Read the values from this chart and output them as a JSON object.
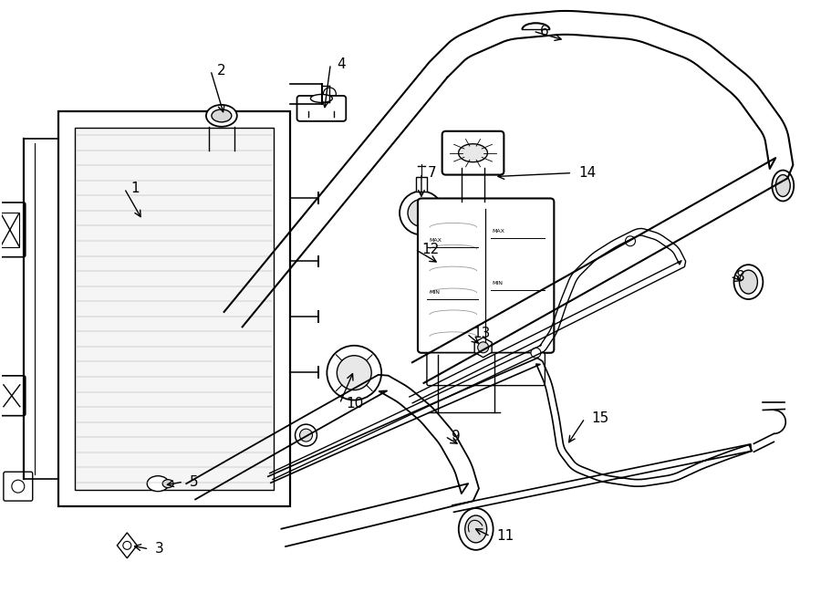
{
  "background_color": "#ffffff",
  "line_color": "#000000",
  "figsize": [
    9.0,
    6.61
  ],
  "dpi": 100,
  "label_configs": [
    [
      "1",
      [
        1.55,
        4.2
      ],
      [
        1.35,
        4.55
      ]
    ],
    [
      "2",
      [
        2.45,
        5.35
      ],
      [
        2.3,
        5.85
      ]
    ],
    [
      "3",
      [
        1.42,
        0.62
      ],
      [
        1.62,
        0.58
      ]
    ],
    [
      "4",
      [
        3.55,
        5.4
      ],
      [
        3.62,
        5.92
      ]
    ],
    [
      "5",
      [
        1.78,
        1.28
      ],
      [
        2.0,
        1.32
      ]
    ],
    [
      "6",
      [
        6.2,
        6.18
      ],
      [
        5.85,
        6.28
      ]
    ],
    [
      "7",
      [
        4.62,
        4.42
      ],
      [
        4.62,
        4.72
      ]
    ],
    [
      "8",
      [
        8.18,
        3.52
      ],
      [
        8.02,
        3.58
      ]
    ],
    [
      "9",
      [
        5.05,
        1.72
      ],
      [
        4.88,
        1.82
      ]
    ],
    [
      "10",
      [
        3.88,
        2.55
      ],
      [
        3.72,
        2.18
      ]
    ],
    [
      "11",
      [
        5.18,
        0.82
      ],
      [
        5.38,
        0.72
      ]
    ],
    [
      "12",
      [
        4.82,
        3.72
      ],
      [
        4.55,
        3.88
      ]
    ],
    [
      "13",
      [
        5.28,
        2.82
      ],
      [
        5.12,
        2.95
      ]
    ],
    [
      "14",
      [
        5.42,
        4.68
      ],
      [
        6.28,
        4.72
      ]
    ],
    [
      "15",
      [
        6.22,
        1.72
      ],
      [
        6.42,
        2.02
      ]
    ]
  ]
}
